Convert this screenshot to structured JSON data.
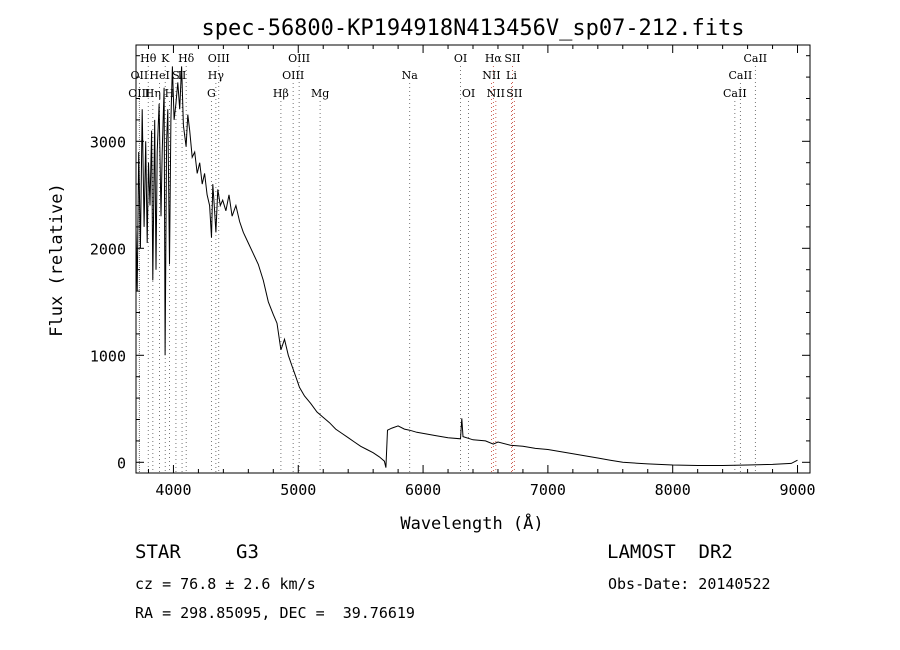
{
  "chart_data": {
    "type": "line",
    "title": "spec-56800-KP194918N413456V_sp07-212.fits",
    "xlabel": "Wavelength (Å)",
    "ylabel": "Flux (relative)",
    "xlim": [
      3700,
      9100
    ],
    "ylim": [
      -100,
      3900
    ],
    "x_ticks": [
      4000,
      5000,
      6000,
      7000,
      8000,
      9000
    ],
    "x_tick_labels": [
      "4000",
      "5000",
      "6000",
      "7000",
      "8000",
      "9000"
    ],
    "y_ticks": [
      0,
      1000,
      2000,
      3000
    ],
    "y_tick_labels": [
      "0",
      "1000",
      "2000",
      "3000"
    ],
    "grid": false,
    "series": [
      {
        "points": [
          [
            3700,
            2200
          ],
          [
            3710,
            1600
          ],
          [
            3722,
            2900
          ],
          [
            3735,
            2000
          ],
          [
            3750,
            3300
          ],
          [
            3765,
            2200
          ],
          [
            3778,
            3000
          ],
          [
            3790,
            2050
          ],
          [
            3800,
            2800
          ],
          [
            3812,
            2400
          ],
          [
            3825,
            3100
          ],
          [
            3835,
            1700
          ],
          [
            3850,
            3200
          ],
          [
            3860,
            1800
          ],
          [
            3870,
            2900
          ],
          [
            3885,
            3350
          ],
          [
            3900,
            2300
          ],
          [
            3910,
            2900
          ],
          [
            3925,
            3500
          ],
          [
            3933,
            1000
          ],
          [
            3945,
            3000
          ],
          [
            3955,
            3300
          ],
          [
            3968,
            1850
          ],
          [
            3980,
            3200
          ],
          [
            3992,
            3700
          ],
          [
            4005,
            3200
          ],
          [
            4020,
            3350
          ],
          [
            4035,
            3550
          ],
          [
            4050,
            3300
          ],
          [
            4065,
            3700
          ],
          [
            4080,
            3150
          ],
          [
            4101,
            2950
          ],
          [
            4115,
            3250
          ],
          [
            4130,
            3100
          ],
          [
            4150,
            2850
          ],
          [
            4170,
            2900
          ],
          [
            4190,
            2700
          ],
          [
            4210,
            2800
          ],
          [
            4230,
            2600
          ],
          [
            4250,
            2700
          ],
          [
            4270,
            2500
          ],
          [
            4290,
            2400
          ],
          [
            4305,
            2100
          ],
          [
            4315,
            2600
          ],
          [
            4330,
            2350
          ],
          [
            4340,
            2150
          ],
          [
            4355,
            2550
          ],
          [
            4375,
            2400
          ],
          [
            4395,
            2450
          ],
          [
            4420,
            2350
          ],
          [
            4445,
            2500
          ],
          [
            4470,
            2300
          ],
          [
            4500,
            2400
          ],
          [
            4530,
            2250
          ],
          [
            4560,
            2150
          ],
          [
            4600,
            2050
          ],
          [
            4640,
            1950
          ],
          [
            4680,
            1850
          ],
          [
            4720,
            1700
          ],
          [
            4760,
            1500
          ],
          [
            4800,
            1380
          ],
          [
            4830,
            1300
          ],
          [
            4861,
            1050
          ],
          [
            4890,
            1150
          ],
          [
            4920,
            1000
          ],
          [
            4950,
            900
          ],
          [
            4980,
            800
          ],
          [
            5010,
            700
          ],
          [
            5050,
            620
          ],
          [
            5100,
            550
          ],
          [
            5150,
            470
          ],
          [
            5200,
            420
          ],
          [
            5250,
            370
          ],
          [
            5300,
            310
          ],
          [
            5350,
            270
          ],
          [
            5400,
            230
          ],
          [
            5450,
            190
          ],
          [
            5500,
            150
          ],
          [
            5550,
            120
          ],
          [
            5600,
            90
          ],
          [
            5650,
            50
          ],
          [
            5690,
            10
          ],
          [
            5702,
            -50
          ],
          [
            5715,
            300
          ],
          [
            5750,
            320
          ],
          [
            5800,
            340
          ],
          [
            5850,
            310
          ],
          [
            5893,
            300
          ],
          [
            5950,
            280
          ],
          [
            6000,
            270
          ],
          [
            6100,
            250
          ],
          [
            6200,
            230
          ],
          [
            6300,
            220
          ],
          [
            6310,
            410
          ],
          [
            6320,
            240
          ],
          [
            6400,
            210
          ],
          [
            6500,
            200
          ],
          [
            6563,
            170
          ],
          [
            6600,
            190
          ],
          [
            6700,
            160
          ],
          [
            6800,
            150
          ],
          [
            6900,
            130
          ],
          [
            7000,
            120
          ],
          [
            7100,
            100
          ],
          [
            7200,
            80
          ],
          [
            7300,
            60
          ],
          [
            7400,
            40
          ],
          [
            7500,
            20
          ],
          [
            7600,
            0
          ],
          [
            7800,
            -15
          ],
          [
            8000,
            -25
          ],
          [
            8200,
            -30
          ],
          [
            8400,
            -30
          ],
          [
            8600,
            -25
          ],
          [
            8800,
            -20
          ],
          [
            8950,
            -10
          ],
          [
            9000,
            20
          ]
        ]
      }
    ],
    "line_markers": [
      {
        "label": "Hθ",
        "wavelength": 3798,
        "row": 1
      },
      {
        "label": "K",
        "wavelength": 3934,
        "row": 1
      },
      {
        "label": "Hδ",
        "wavelength": 4102,
        "row": 1
      },
      {
        "label": "OIII",
        "wavelength": 4363,
        "row": 1
      },
      {
        "label": "OIII",
        "wavelength": 5007,
        "row": 1
      },
      {
        "label": "OI",
        "wavelength": 6300,
        "row": 1
      },
      {
        "label": "Hα",
        "wavelength": 6563,
        "row": 1
      },
      {
        "label": "SII",
        "wavelength": 6716,
        "row": 1
      },
      {
        "label": "CaII",
        "wavelength": 8662,
        "row": 1
      },
      {
        "label": "OII",
        "wavelength": 3727,
        "row": 2
      },
      {
        "label": "HeI",
        "wavelength": 3889,
        "row": 2
      },
      {
        "label": "S",
        "wavelength": 4020,
        "row": 2
      },
      {
        "label": "II",
        "wavelength": 4069,
        "row": 2
      },
      {
        "label": "Hγ",
        "wavelength": 4340,
        "row": 2
      },
      {
        "label": "OIII",
        "wavelength": 4959,
        "row": 2
      },
      {
        "label": "Na",
        "wavelength": 5893,
        "row": 2
      },
      {
        "label": "NII",
        "wavelength": 6548,
        "row": 2
      },
      {
        "label": "Li",
        "wavelength": 6708,
        "row": 2
      },
      {
        "label": "CaII",
        "wavelength": 8542,
        "row": 2
      },
      {
        "label": "OIII",
        "wavelength": 3726,
        "row": 3
      },
      {
        "label": "Hη",
        "wavelength": 3835,
        "row": 3
      },
      {
        "label": "H",
        "wavelength": 3968,
        "row": 3
      },
      {
        "label": "G",
        "wavelength": 4304,
        "row": 3
      },
      {
        "label": "Hβ",
        "wavelength": 4861,
        "row": 3
      },
      {
        "label": "Mg",
        "wavelength": 5175,
        "row": 3
      },
      {
        "label": "OI",
        "wavelength": 6364,
        "row": 3
      },
      {
        "label": "NII",
        "wavelength": 6583,
        "row": 3
      },
      {
        "label": "SII",
        "wavelength": 6731,
        "row": 3
      },
      {
        "label": "CaII",
        "wavelength": 8498,
        "row": 3
      }
    ]
  },
  "info": {
    "object_class": "STAR",
    "subclass": "G3",
    "survey": "LAMOST  DR2",
    "cz": "cz = 76.8 ± 2.6 km/s",
    "obs_date": "Obs-Date: 20140522",
    "coords": "RA = 298.85095, DEC =  39.76619"
  }
}
